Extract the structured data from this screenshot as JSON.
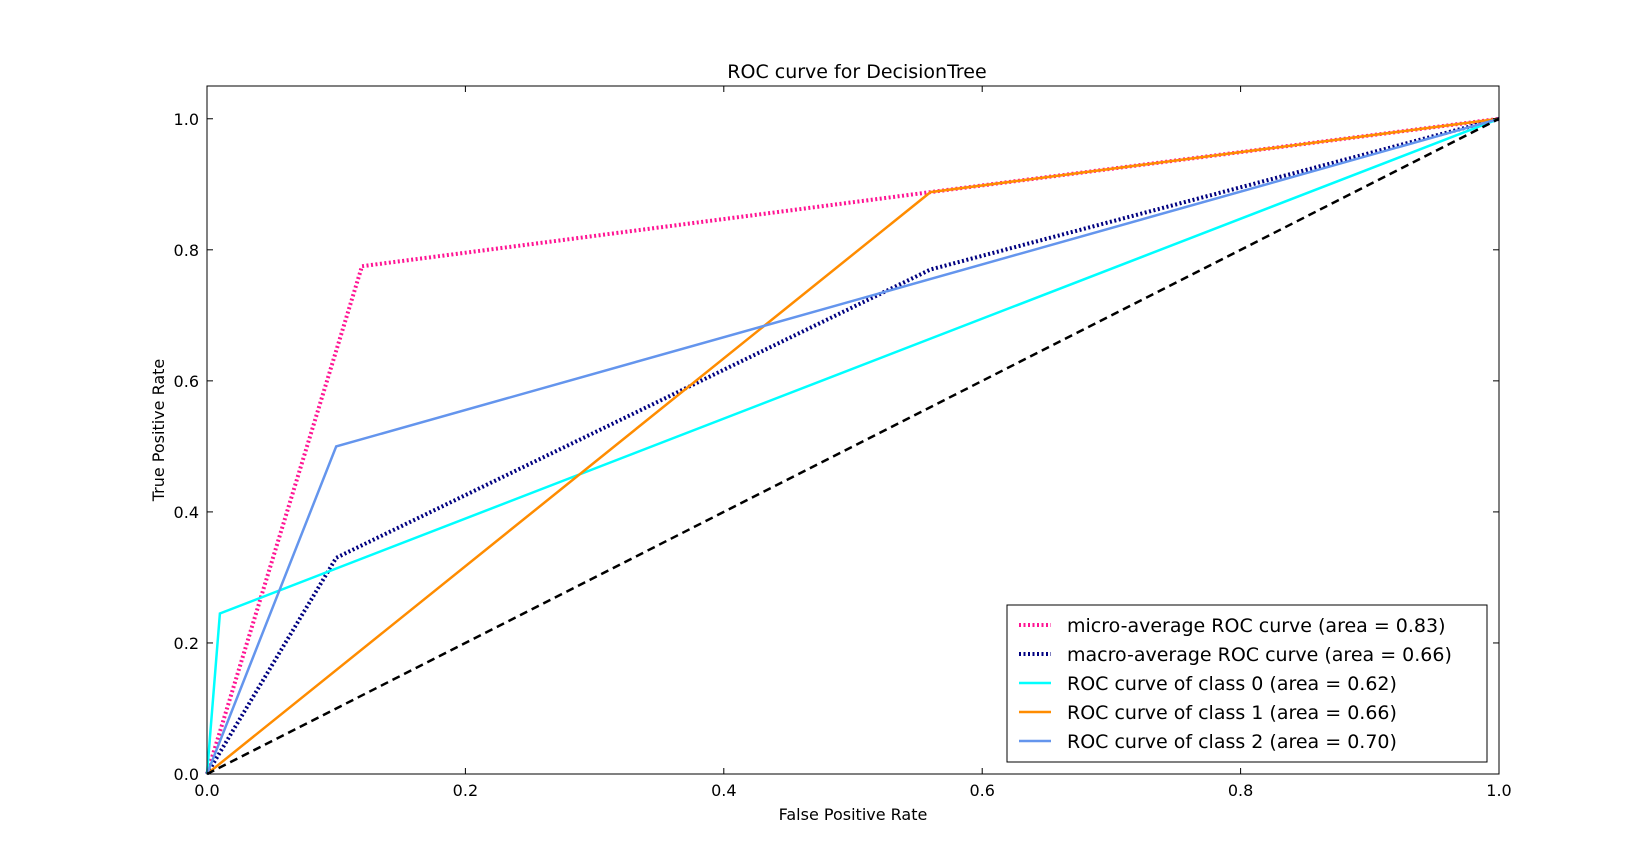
{
  "chart_data": {
    "type": "line",
    "title": "ROC curve for DecisionTree",
    "xlabel": "False Positive Rate",
    "ylabel": "True Positive Rate",
    "xlim": [
      0.0,
      1.0
    ],
    "ylim": [
      0.0,
      1.05
    ],
    "xticks": [
      "0.0",
      "0.2",
      "0.4",
      "0.6",
      "0.8",
      "1.0"
    ],
    "yticks": [
      "0.0",
      "0.2",
      "0.4",
      "0.6",
      "0.8",
      "1.0"
    ],
    "grid": false,
    "legend_position": "lower-right",
    "series": [
      {
        "name": "micro-average ROC curve (area = 0.83)",
        "color": "#ff1493",
        "style": "dotted",
        "points": [
          [
            0.0,
            0.0
          ],
          [
            0.12,
            0.775
          ],
          [
            0.56,
            0.888
          ],
          [
            1.0,
            1.0
          ]
        ]
      },
      {
        "name": "macro-average ROC curve (area = 0.66)",
        "color": "#000080",
        "style": "dotted",
        "points": [
          [
            0.0,
            0.0
          ],
          [
            0.1,
            0.33
          ],
          [
            0.56,
            0.77
          ],
          [
            1.0,
            1.0
          ]
        ]
      },
      {
        "name": "ROC curve of class 0 (area = 0.62)",
        "color": "#00ffff",
        "style": "solid",
        "points": [
          [
            0.0,
            0.0
          ],
          [
            0.01,
            0.245
          ],
          [
            1.0,
            1.0
          ]
        ]
      },
      {
        "name": "ROC curve of class 1 (area = 0.66)",
        "color": "#ff8c00",
        "style": "solid",
        "points": [
          [
            0.0,
            0.0
          ],
          [
            0.56,
            0.888
          ],
          [
            1.0,
            1.0
          ]
        ]
      },
      {
        "name": "ROC curve of class 2 (area = 0.70)",
        "color": "#6495ed",
        "style": "solid",
        "points": [
          [
            0.0,
            0.0
          ],
          [
            0.1,
            0.5
          ],
          [
            1.0,
            1.0
          ]
        ]
      }
    ],
    "reference_line": {
      "color": "#000000",
      "style": "dashed",
      "points": [
        [
          0.0,
          0.0
        ],
        [
          1.0,
          1.0
        ]
      ]
    }
  }
}
